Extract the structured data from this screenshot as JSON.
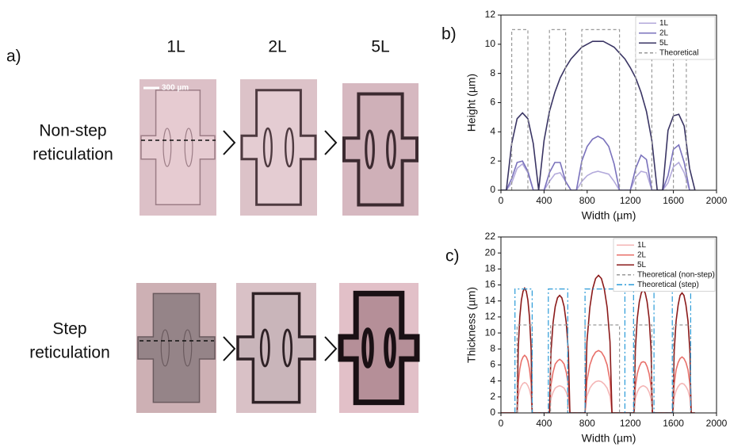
{
  "panel_a": {
    "label": "a)",
    "columns": [
      "1L",
      "2L",
      "5L"
    ],
    "rows": [
      [
        "Non-step",
        "reticulation"
      ],
      [
        "Step",
        "reticulation"
      ]
    ],
    "scale_bar": "300 µm"
  },
  "chart_data": [
    {
      "type": "line",
      "panel_label": "b)",
      "xlabel": "Width (µm)",
      "ylabel": "Height (µm)",
      "xlim": [
        0,
        2000
      ],
      "xticks": [
        0,
        400,
        800,
        1200,
        1600,
        2000
      ],
      "ylim": [
        0,
        12
      ],
      "yticks": [
        0,
        2,
        4,
        6,
        8,
        10,
        12
      ],
      "legend": "upper right",
      "x": [
        0,
        50,
        100,
        150,
        200,
        250,
        300,
        350,
        400,
        450,
        500,
        550,
        600,
        650,
        700,
        750,
        800,
        850,
        900,
        950,
        1000,
        1050,
        1100,
        1150,
        1200,
        1250,
        1300,
        1350,
        1400,
        1450,
        1500,
        1550,
        1600,
        1650,
        1700,
        1750,
        1800
      ],
      "series": [
        {
          "name": "1L",
          "color": "#b3aadb",
          "linestyle": "solid",
          "values": [
            0,
            0,
            0.5,
            1.5,
            1.8,
            1.2,
            0,
            0,
            0,
            0.6,
            1.1,
            1.2,
            0.6,
            0,
            0,
            0.6,
            1.0,
            1.2,
            1.3,
            1.2,
            1.1,
            0.6,
            0,
            0,
            0,
            0.9,
            1.3,
            1.2,
            0,
            0,
            0,
            0.5,
            1.6,
            1.9,
            1.2,
            0,
            0
          ]
        },
        {
          "name": "2L",
          "color": "#7a72bc",
          "linestyle": "solid",
          "values": [
            0,
            0,
            0.8,
            1.9,
            2.0,
            1.3,
            0,
            0,
            0,
            1.2,
            1.9,
            1.9,
            0.6,
            0,
            0,
            2.0,
            3.0,
            3.5,
            3.7,
            3.5,
            3.0,
            1.8,
            0,
            0,
            0,
            1.5,
            2.4,
            2.1,
            0,
            0,
            0,
            1.0,
            2.8,
            3.1,
            1.9,
            0,
            0
          ]
        },
        {
          "name": "5L",
          "color": "#3a3564",
          "linestyle": "solid",
          "values": [
            0,
            0,
            3.2,
            4.9,
            5.3,
            4.9,
            3.2,
            0,
            3.4,
            5.4,
            6.7,
            7.7,
            8.4,
            9.0,
            9.4,
            9.8,
            10.0,
            10.2,
            10.2,
            10.2,
            10.0,
            9.8,
            9.4,
            9.0,
            8.4,
            7.7,
            6.7,
            5.4,
            3.4,
            0,
            0,
            4.1,
            5.1,
            5.2,
            4.4,
            1.5,
            0
          ]
        },
        {
          "name": "Theoretical",
          "color": "#999999",
          "linestyle": "dashed",
          "x": [
            100,
            100,
            250,
            250,
            450,
            450,
            600,
            600,
            750,
            750,
            1100,
            1100,
            1250,
            1250,
            1400,
            1400,
            1600,
            1600,
            1720,
            1720
          ],
          "values": [
            0,
            11,
            11,
            0,
            0,
            11,
            11,
            0,
            0,
            11,
            11,
            0,
            0,
            11,
            11,
            0,
            0,
            11,
            11,
            0
          ]
        }
      ]
    },
    {
      "type": "line",
      "panel_label": "c)",
      "xlabel": "Width (µm)",
      "ylabel": "Thickness (µm)",
      "xlim": [
        0,
        2000
      ],
      "xticks": [
        0,
        400,
        800,
        1200,
        1600,
        2000
      ],
      "ylim": [
        0,
        22
      ],
      "yticks": [
        0,
        2,
        4,
        6,
        8,
        10,
        12,
        14,
        16,
        18,
        20,
        22
      ],
      "legend": "upper right",
      "x": [
        0,
        150,
        160,
        175,
        190,
        205,
        220,
        235,
        250,
        265,
        280,
        290,
        450,
        464,
        484,
        504,
        525,
        545,
        565,
        586,
        606,
        626,
        640,
        780,
        798,
        825,
        851,
        878,
        905,
        932,
        959,
        985,
        1012,
        1030,
        1235,
        1247,
        1265,
        1284,
        1302,
        1320,
        1338,
        1356,
        1375,
        1393,
        1405,
        1595,
        1607,
        1625,
        1644,
        1662,
        1680,
        1698,
        1716,
        1735,
        1753,
        1765,
        1800
      ],
      "series": [
        {
          "name": "1L",
          "color": "#f4b6b6",
          "linestyle": "solid",
          "values": [
            0,
            0,
            2.0,
            2.9,
            3.4,
            3.7,
            3.8,
            3.7,
            3.4,
            2.9,
            2.0,
            0,
            0,
            1.8,
            2.6,
            3.1,
            3.3,
            3.4,
            3.3,
            3.1,
            2.6,
            1.8,
            0,
            0,
            2.1,
            3.1,
            3.6,
            3.9,
            4.0,
            3.9,
            3.6,
            3.1,
            2.1,
            0,
            0,
            1.8,
            2.6,
            3.1,
            3.3,
            3.4,
            3.3,
            3.1,
            2.6,
            1.8,
            0,
            0,
            1.9,
            2.8,
            3.3,
            3.6,
            3.7,
            3.6,
            3.3,
            2.8,
            1.9,
            0,
            0
          ]
        },
        {
          "name": "2L",
          "color": "#e8706a",
          "linestyle": "solid",
          "values": [
            0,
            0,
            3.7,
            5.5,
            6.5,
            7.0,
            7.2,
            7.0,
            6.5,
            5.5,
            3.7,
            0,
            0,
            3.5,
            5.1,
            6.1,
            6.5,
            6.7,
            6.5,
            6.1,
            5.1,
            3.5,
            0,
            0,
            4.0,
            6.0,
            7.0,
            7.6,
            7.8,
            7.6,
            7.0,
            6.0,
            4.0,
            0,
            0,
            3.3,
            4.9,
            5.8,
            6.3,
            6.4,
            6.3,
            5.8,
            4.9,
            3.3,
            0,
            0,
            3.6,
            5.4,
            6.3,
            6.8,
            7.0,
            6.8,
            6.3,
            5.4,
            3.6,
            0,
            0
          ]
        },
        {
          "name": "5L",
          "color": "#8b1a1a",
          "linestyle": "solid",
          "values": [
            0,
            0,
            8.0,
            12.0,
            14.1,
            15.2,
            15.6,
            15.2,
            14.1,
            12.0,
            8.0,
            0,
            0,
            7.6,
            11.3,
            13.3,
            14.4,
            14.7,
            14.4,
            13.3,
            11.3,
            7.6,
            0,
            0,
            8.9,
            13.2,
            15.5,
            16.8,
            17.2,
            16.8,
            15.5,
            13.2,
            8.9,
            0,
            0,
            7.9,
            11.8,
            13.9,
            15.0,
            15.4,
            15.0,
            13.9,
            11.8,
            7.9,
            0,
            0,
            7.7,
            11.5,
            13.5,
            14.7,
            15.0,
            14.7,
            13.5,
            11.5,
            7.7,
            0,
            0
          ]
        },
        {
          "name": "Theoretical (non-step)",
          "color": "#999999",
          "linestyle": "dashed",
          "x": [
            150,
            150,
            290,
            290,
            460,
            460,
            620,
            620,
            780,
            780,
            1100,
            1100,
            1240,
            1240,
            1400,
            1400,
            1600,
            1600,
            1760,
            1760
          ],
          "values": [
            0,
            11,
            11,
            0,
            0,
            11,
            11,
            0,
            0,
            11,
            11,
            0,
            0,
            11,
            11,
            0,
            0,
            11,
            11,
            0
          ]
        },
        {
          "name": "Theoretical (step)",
          "color": "#2b9bd8",
          "linestyle": "dashdot",
          "x": [
            130,
            130,
            290,
            290,
            440,
            440,
            620,
            620,
            780,
            780,
            1150,
            1150,
            1230,
            1230,
            1420,
            1420,
            1590,
            1590,
            1760,
            1760
          ],
          "values": [
            0,
            15.5,
            15.5,
            0,
            0,
            15.5,
            15.5,
            0,
            0,
            15.5,
            15.5,
            0,
            0,
            15.5,
            15.5,
            0,
            0,
            15.5,
            15.5,
            0
          ]
        }
      ]
    }
  ]
}
